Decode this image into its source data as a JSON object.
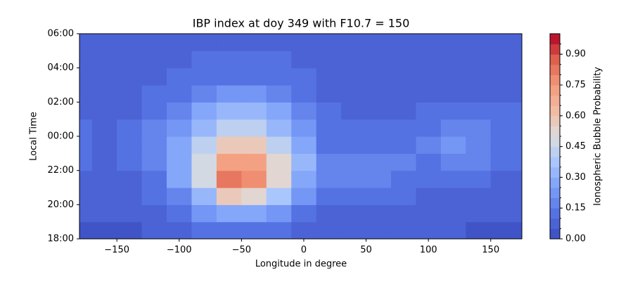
{
  "chart_data": {
    "type": "contour",
    "title": "IBP index at doy 349 with F10.7 = 150",
    "x_label": "Longitude in degree",
    "y_label": "Local Time",
    "colorbar_label": "Ionospheric Bubble Probability",
    "colormap": "coolwarm",
    "xlim": [
      -180,
      175
    ],
    "ylim": [
      18,
      30
    ],
    "xticks": [
      {
        "value": -150,
        "label": "−150"
      },
      {
        "value": -100,
        "label": "−100"
      },
      {
        "value": -50,
        "label": "−50"
      },
      0,
      50,
      100,
      150
    ],
    "yticks": [
      {
        "value": 18,
        "label": "18:00"
      },
      {
        "value": 20,
        "label": "20:00"
      },
      {
        "value": 22,
        "label": "22:00"
      },
      {
        "value": 24,
        "label": "00:00"
      },
      {
        "value": 26,
        "label": "02:00"
      },
      {
        "value": 28,
        "label": "04:00"
      },
      {
        "value": 30,
        "label": "06:00"
      }
    ],
    "clim": [
      0,
      1
    ],
    "levels": [
      0,
      0.05,
      0.1,
      0.15,
      0.2,
      0.25,
      0.3,
      0.35,
      0.4,
      0.45,
      0.5,
      0.55,
      0.6,
      0.65,
      0.7,
      0.75,
      0.8,
      0.85,
      0.9,
      0.95,
      1
    ],
    "cticks": [
      {
        "value": 0,
        "label": "0.00"
      },
      {
        "value": 0.15,
        "label": "0.15"
      },
      {
        "value": 0.3,
        "label": "0.30"
      },
      {
        "value": 0.45,
        "label": "0.45"
      },
      {
        "value": 0.6,
        "label": "0.60"
      },
      {
        "value": 0.75,
        "label": "0.75"
      },
      {
        "value": 0.9,
        "label": "0.90"
      }
    ],
    "x": [
      -180,
      -160,
      -140,
      -120,
      -100,
      -80,
      -60,
      -40,
      -20,
      0,
      20,
      40,
      60,
      80,
      100,
      120,
      140,
      160
    ],
    "y": [
      18.5,
      19.5,
      20.5,
      21.5,
      22.5,
      23.5,
      24.5,
      25.5,
      26.5,
      27.5,
      28.5,
      29.5
    ],
    "z": [
      [
        0.03,
        0.03,
        0.04,
        0.06,
        0.07,
        0.1,
        0.13,
        0.13,
        0.1,
        0.08,
        0.07,
        0.07,
        0.07,
        0.07,
        0.06,
        0.05,
        0.04,
        0.03
      ],
      [
        0.06,
        0.06,
        0.07,
        0.08,
        0.12,
        0.2,
        0.28,
        0.27,
        0.2,
        0.13,
        0.09,
        0.08,
        0.08,
        0.08,
        0.07,
        0.07,
        0.06,
        0.06
      ],
      [
        0.07,
        0.07,
        0.08,
        0.11,
        0.18,
        0.33,
        0.55,
        0.52,
        0.35,
        0.2,
        0.12,
        0.11,
        0.11,
        0.1,
        0.09,
        0.09,
        0.08,
        0.07
      ],
      [
        0.08,
        0.07,
        0.09,
        0.14,
        0.25,
        0.45,
        0.82,
        0.78,
        0.5,
        0.28,
        0.15,
        0.16,
        0.17,
        0.13,
        0.12,
        0.13,
        0.11,
        0.09
      ],
      [
        0.1,
        0.07,
        0.1,
        0.16,
        0.28,
        0.48,
        0.72,
        0.7,
        0.5,
        0.3,
        0.16,
        0.17,
        0.18,
        0.15,
        0.14,
        0.19,
        0.15,
        0.11
      ],
      [
        0.11,
        0.07,
        0.1,
        0.16,
        0.27,
        0.42,
        0.58,
        0.56,
        0.42,
        0.26,
        0.14,
        0.12,
        0.13,
        0.13,
        0.16,
        0.21,
        0.18,
        0.12
      ],
      [
        0.1,
        0.07,
        0.1,
        0.15,
        0.22,
        0.33,
        0.42,
        0.42,
        0.33,
        0.2,
        0.12,
        0.1,
        0.1,
        0.1,
        0.13,
        0.16,
        0.15,
        0.12
      ],
      [
        0.08,
        0.07,
        0.09,
        0.13,
        0.18,
        0.25,
        0.3,
        0.3,
        0.25,
        0.16,
        0.11,
        0.09,
        0.08,
        0.08,
        0.1,
        0.11,
        0.11,
        0.1
      ],
      [
        0.07,
        0.07,
        0.07,
        0.1,
        0.14,
        0.18,
        0.2,
        0.2,
        0.17,
        0.12,
        0.09,
        0.07,
        0.07,
        0.07,
        0.08,
        0.08,
        0.08,
        0.08
      ],
      [
        0.07,
        0.07,
        0.07,
        0.08,
        0.12,
        0.12,
        0.14,
        0.12,
        0.12,
        0.12,
        0.09,
        0.07,
        0.07,
        0.07,
        0.07,
        0.07,
        0.07,
        0.07
      ],
      [
        0.07,
        0.07,
        0.07,
        0.07,
        0.07,
        0.1,
        0.1,
        0.1,
        0.1,
        0.07,
        0.07,
        0.07,
        0.07,
        0.07,
        0.07,
        0.07,
        0.07,
        0.07
      ],
      [
        0.07,
        0.07,
        0.07,
        0.07,
        0.07,
        0.07,
        0.07,
        0.07,
        0.07,
        0.07,
        0.07,
        0.07,
        0.07,
        0.07,
        0.07,
        0.07,
        0.07,
        0.07
      ]
    ]
  }
}
